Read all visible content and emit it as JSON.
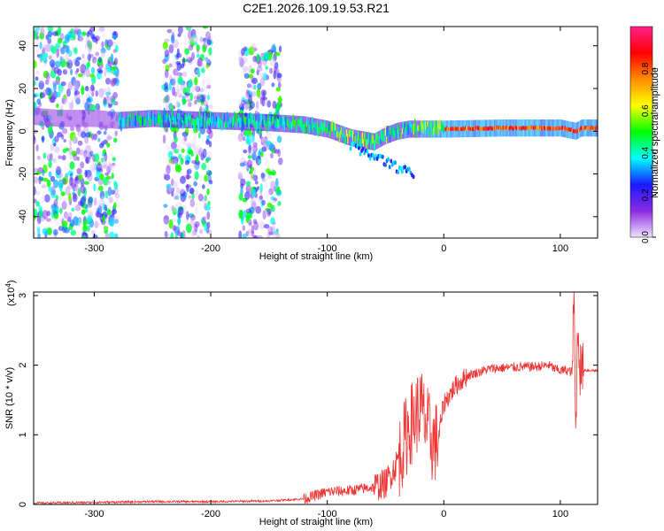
{
  "chart_data": [
    {
      "type": "heatmap",
      "title": "C2E1.2026.109.19.53.R21",
      "xlabel": "Height of straight line (km)",
      "ylabel": "Frequency (Hz)",
      "xlim": [
        -352,
        132
      ],
      "ylim": [
        -50,
        49
      ],
      "xticks": [
        -300,
        -200,
        -100,
        0,
        100
      ],
      "xtick_labels": [
        "-300",
        "-200",
        "-100",
        "0",
        "100"
      ],
      "yticks": [
        -40,
        -20,
        0,
        20,
        40
      ],
      "ytick_labels": [
        "-40",
        "-20",
        "0",
        "20",
        "40"
      ],
      "colorbar": {
        "label": "Normalized spectral amplitude",
        "range": [
          0,
          1
        ],
        "ticks": [
          0.0,
          0.2,
          0.4,
          0.6,
          0.8
        ],
        "tick_labels": [
          "0.0",
          "0.2",
          "0.4",
          "0.6",
          "0.8"
        ],
        "colors": [
          "#f0e4ff",
          "#8a2be2",
          "#1a1aff",
          "#00ffff",
          "#00ff00",
          "#ffff00",
          "#ff8c00",
          "#ff0000",
          "#ff1f8f"
        ]
      },
      "ridge": {
        "x": [
          -352,
          -330,
          -300,
          -280,
          -250,
          -200,
          -150,
          -120,
          -100,
          -90,
          -80,
          -70,
          -60,
          -50,
          -40,
          -30,
          -20,
          -10,
          0,
          50,
          100,
          113,
          118,
          132
        ],
        "y": [
          7,
          6,
          6,
          5,
          6,
          5,
          4,
          3,
          1,
          -1,
          -3,
          -4,
          -5,
          -2,
          0,
          1,
          1,
          1,
          1,
          1.5,
          1.5,
          0,
          1.5,
          1.5
        ]
      },
      "noise_regions": [
        {
          "x": [
            -352,
            -280
          ],
          "y": [
            -50,
            49
          ]
        },
        {
          "x": [
            -240,
            -200
          ],
          "y": [
            -50,
            49
          ]
        },
        {
          "x": [
            -175,
            -140
          ],
          "y": [
            -50,
            40
          ]
        }
      ]
    },
    {
      "type": "line",
      "title": "",
      "xlabel": "Height of straight line (km)",
      "ylabel": "SNR (10 * v/v)",
      "y_multiplier": "(x10",
      "y_multiplier_exp": "4",
      "y_multiplier_close": ")",
      "xlim": [
        -352,
        132
      ],
      "ylim": [
        0,
        3.05
      ],
      "xticks": [
        -300,
        -200,
        -100,
        0,
        100
      ],
      "xtick_labels": [
        "-300",
        "-200",
        "-100",
        "0",
        "100"
      ],
      "yticks": [
        0,
        1,
        2,
        3
      ],
      "ytick_labels": [
        "0",
        "1",
        "2",
        "3"
      ],
      "line_color": "#ee3333",
      "series": [
        {
          "name": "SNR",
          "x": [
            -352,
            -300,
            -250,
            -200,
            -150,
            -120,
            -100,
            -80,
            -60,
            -50,
            -40,
            -30,
            -20,
            -10,
            -5,
            0,
            10,
            20,
            40,
            60,
            80,
            90,
            95,
            100,
            105,
            110,
            112,
            113,
            115,
            117,
            120,
            132
          ],
          "y": [
            0.02,
            0.03,
            0.04,
            0.04,
            0.05,
            0.08,
            0.18,
            0.2,
            0.25,
            0.3,
            0.6,
            1.1,
            1.4,
            0.9,
            0.9,
            1.45,
            1.7,
            1.85,
            1.95,
            1.97,
            1.98,
            2.0,
            1.95,
            1.92,
            1.93,
            1.9,
            3.05,
            0.9,
            2.6,
            1.95,
            1.93,
            1.92
          ]
        }
      ]
    }
  ]
}
